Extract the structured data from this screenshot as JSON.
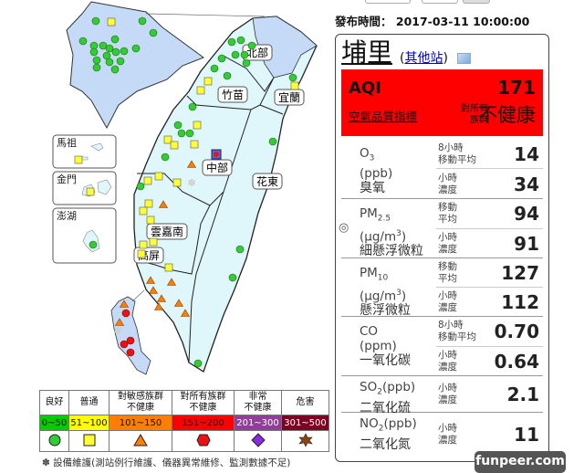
{
  "header": {
    "publish_label": "發布時間：",
    "publish_time": "2017-03-11 10:00:00"
  },
  "station": {
    "name": "埔里",
    "other_open": "(",
    "other_link": "其他站",
    "other_close": ")",
    "chart_icon": "line-chart-icon"
  },
  "aqi": {
    "label": "AQI",
    "value": "171",
    "sublabel": "空氣品質指標",
    "group": "對所有族群",
    "status": "不健康",
    "color": "#ff0000"
  },
  "pollutants": [
    {
      "name": "O",
      "sub": "3",
      "unit": "(ppb)",
      "zh": "臭氧",
      "readings": [
        {
          "label1": "8小時",
          "label2": "移動平均",
          "value": "14"
        },
        {
          "label1": "小時",
          "label2": "濃度",
          "value": "34"
        }
      ]
    },
    {
      "name": "PM",
      "sub": "2.5",
      "unit": "(μg/m",
      "sup": "3",
      "unit_close": ")",
      "zh": "細懸浮微粒",
      "marker": "◎",
      "readings": [
        {
          "label1": "移動",
          "label2": "平均",
          "value": "94"
        },
        {
          "label1": "小時",
          "label2": "濃度",
          "value": "91"
        }
      ]
    },
    {
      "name": "PM",
      "sub": "10",
      "unit": "(μg/m",
      "sup": "3",
      "unit_close": ")",
      "zh": "懸浮微粒",
      "readings": [
        {
          "label1": "移動",
          "label2": "平均",
          "value": "127"
        },
        {
          "label1": "小時",
          "label2": "濃度",
          "value": "112"
        }
      ]
    },
    {
      "name": "CO",
      "unit": "(ppm)",
      "zh": "一氧化碳",
      "readings": [
        {
          "label1": "8小時",
          "label2": "移動平均",
          "value": "0.70"
        },
        {
          "label1": "小時",
          "label2": "濃度",
          "value": "0.64"
        }
      ]
    },
    {
      "name": "SO",
      "sub": "2",
      "unit": "(ppb)",
      "zh": "二氧化硫",
      "readings": [
        {
          "label1": "小時",
          "label2": "濃度",
          "value": "2.1"
        }
      ]
    },
    {
      "name": "NO",
      "sub": "2",
      "unit": "(ppb)",
      "zh": "二氧化氮",
      "readings": [
        {
          "label1": "小時",
          "label2": "濃度",
          "value": "11"
        }
      ]
    }
  ],
  "map": {
    "regions": [
      "北部",
      "竹苗",
      "宜蘭",
      "中部",
      "花東",
      "雲嘉南",
      "高屏"
    ],
    "islands": [
      "馬祖",
      "金門",
      "澎湖"
    ]
  },
  "legend": [
    {
      "label1": "良好",
      "label2": "",
      "range": "0~50",
      "color": "#00cc00",
      "text": "#111",
      "shape": "circle"
    },
    {
      "label1": "普通",
      "label2": "",
      "range": "51~100",
      "color": "#ffff00",
      "text": "#111",
      "shape": "square"
    },
    {
      "label1": "對敏感族群",
      "label2": "不健康",
      "range": "101~150",
      "color": "#ff7e00",
      "text": "#111",
      "shape": "triangle"
    },
    {
      "label1": "對所有族群",
      "label2": "不健康",
      "range": "151~200",
      "color": "#ff0000",
      "text": "#111",
      "shape": "hexagon"
    },
    {
      "label1": "非常",
      "label2": "不健康",
      "range": "201~300",
      "color": "#8f3f97",
      "text": "#fff",
      "shape": "diamond"
    },
    {
      "label1": "危害",
      "label2": "",
      "range": "301~500",
      "color": "#7e0023",
      "text": "#fff",
      "shape": "star"
    }
  ],
  "footnote": "設備維護(測站例行維護、儀器異常維修、監測數據不足)",
  "watermark": "funpeer.com"
}
